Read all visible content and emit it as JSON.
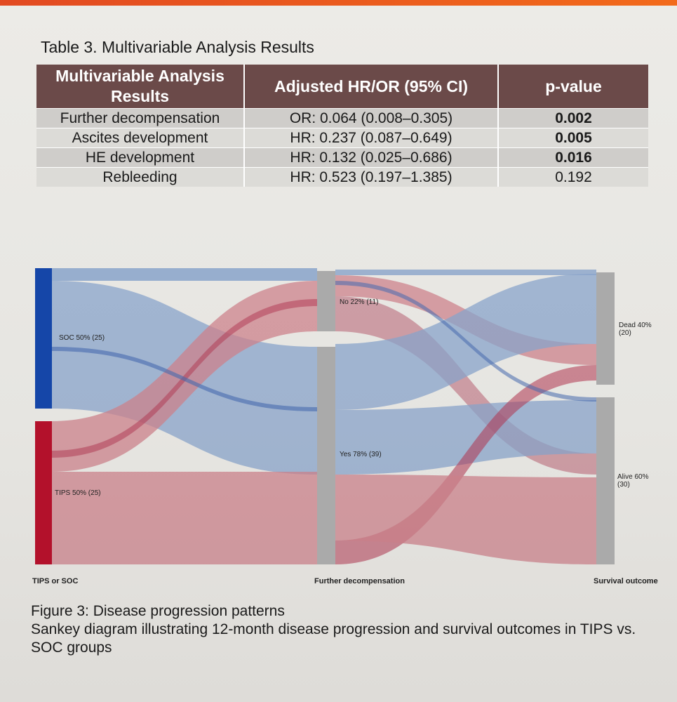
{
  "table": {
    "caption": "Table 3. Multivariable Analysis Results",
    "headers": [
      "Multivariable Analysis Results",
      "Adjusted HR/OR (95% CI)",
      "p-value"
    ],
    "rows": [
      {
        "outcome": "Further decompensation",
        "estimate": "OR: 0.064 (0.008–0.305)",
        "p": "0.002",
        "significant": true
      },
      {
        "outcome": "Ascites development",
        "estimate": "HR: 0.237 (0.087–0.649)",
        "p": "0.005",
        "significant": true
      },
      {
        "outcome": "HE development",
        "estimate": "HR: 0.132 (0.025–0.686)",
        "p": "0.016",
        "significant": true
      },
      {
        "outcome": "Rebleeding",
        "estimate": "HR: 0.523 (0.197–1.385)",
        "p": "0.192",
        "significant": false
      }
    ]
  },
  "sankey": {
    "columns": [
      "TIPS or SOC",
      "Further decompensation",
      "Survival outcome"
    ],
    "nodes": {
      "soc": {
        "label": "SOC 50% (25)",
        "color": "#1546a8"
      },
      "tips": {
        "label": "TIPS 50% (25)",
        "color": "#b3112b"
      },
      "no": {
        "label": "No 22% (11)",
        "color": "#aaaaaa"
      },
      "yes": {
        "label": "Yes 78% (39)",
        "color": "#aaaaaa"
      },
      "dead": {
        "label_line1": "Dead 40%",
        "label_line2": "(20)",
        "color": "#aaaaaa"
      },
      "alive": {
        "label_line1": "Alive 60%",
        "label_line2": "(30)",
        "color": "#aaaaaa"
      }
    },
    "flow_colors": {
      "soc": "#97b5e4",
      "tips": "#e2909e"
    }
  },
  "figure": {
    "title": "Figure 3: Disease progression patterns",
    "description": "Sankey diagram illustrating 12-month disease progression and survival outcomes in TIPS vs. SOC groups"
  }
}
